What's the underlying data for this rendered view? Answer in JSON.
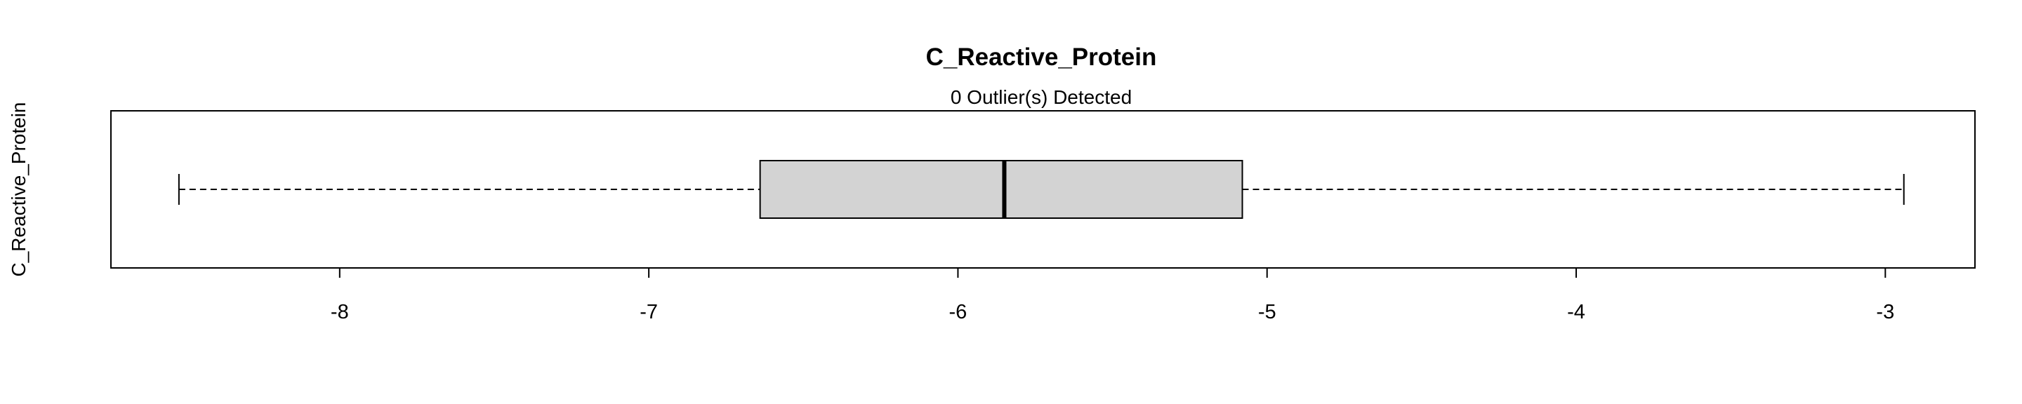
{
  "chart_data": {
    "type": "boxplot",
    "orientation": "horizontal",
    "title": "C_Reactive_Protein",
    "subtitle": "0 Outlier(s) Detected",
    "xlabel": "",
    "ylabel": "C_Reactive_Protein",
    "xlim": [
      -8.74,
      -2.71
    ],
    "ticks": [
      -8,
      -7,
      -6,
      -5,
      -4,
      -3
    ],
    "tick_labels": [
      "-8",
      "-7",
      "-6",
      "-5",
      "-4",
      "-3"
    ],
    "grid": false,
    "box": {
      "whisker_low": -8.52,
      "q1": -6.64,
      "median": -5.85,
      "q3": -5.08,
      "whisker_high": -2.94
    },
    "outliers": [],
    "colors": {
      "box_fill": "#d3d3d3",
      "stroke": "#000000",
      "background": "#ffffff"
    }
  }
}
